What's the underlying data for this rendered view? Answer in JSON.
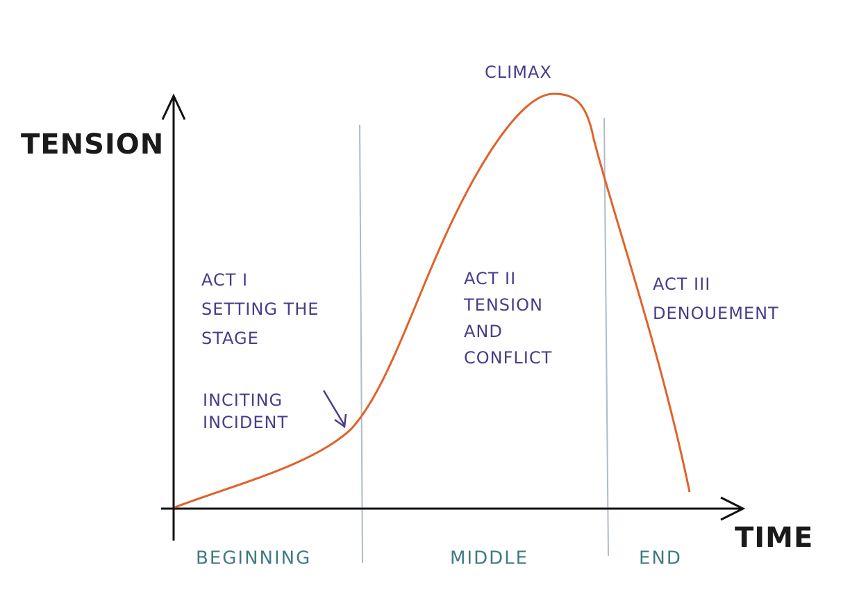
{
  "axes": {
    "y_label": "TENSION",
    "x_label": "TIME"
  },
  "peak": "CLIMAX",
  "acts": [
    {
      "lines": [
        "ACT I",
        "SETTING THE",
        "STAGE"
      ]
    },
    {
      "lines": [
        "ACT II",
        "TENSION",
        "AND",
        "CONFLICT"
      ]
    },
    {
      "lines": [
        "ACT III",
        "DENOUEMENT"
      ]
    }
  ],
  "inciting": {
    "lines": [
      "INCITING",
      "INCIDENT"
    ]
  },
  "sections": [
    "BEGINNING",
    "MIDDLE",
    "END"
  ]
}
